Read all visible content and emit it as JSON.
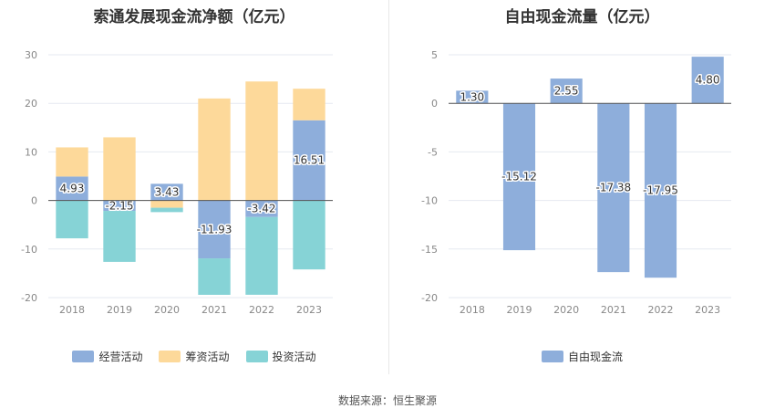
{
  "source_text": "数据来源：恒生聚源",
  "chart_data": [
    {
      "type": "bar",
      "stacked": true,
      "title": "索通发展现金流净额（亿元）",
      "categories": [
        "2018",
        "2019",
        "2020",
        "2021",
        "2022",
        "2023"
      ],
      "ylim": [
        -20,
        30
      ],
      "yticks": [
        -20,
        -10,
        0,
        10,
        20,
        30
      ],
      "grid": true,
      "legend_position": "bottom",
      "series": [
        {
          "name": "经营活动",
          "color": "#8eaedb",
          "values": [
            4.93,
            -2.15,
            3.43,
            -11.93,
            -3.42,
            16.51
          ],
          "labeled": true
        },
        {
          "name": "筹资活动",
          "color": "#fdd99a",
          "values": [
            6.0,
            13.0,
            -1.5,
            21.0,
            24.5,
            6.5
          ],
          "labeled": false
        },
        {
          "name": "投资活动",
          "color": "#86d3d6",
          "values": [
            -7.8,
            -10.5,
            -0.9,
            -7.5,
            -16.0,
            -14.2
          ],
          "labeled": false
        }
      ],
      "labels": [
        "4.93",
        "-2.15",
        "3.43",
        "-11.93",
        "-3.42",
        "16.51"
      ]
    },
    {
      "type": "bar",
      "title": "自由现金流量（亿元）",
      "categories": [
        "2018",
        "2019",
        "2020",
        "2021",
        "2022",
        "2023"
      ],
      "ylim": [
        -20,
        5
      ],
      "yticks": [
        -20,
        -15,
        -10,
        -5,
        0,
        5
      ],
      "grid": true,
      "legend_position": "bottom",
      "series": [
        {
          "name": "自由现金流",
          "color": "#8eaedb",
          "values": [
            1.3,
            -15.12,
            2.55,
            -17.38,
            -17.95,
            4.8
          ],
          "labeled": true
        }
      ],
      "labels": [
        "1.30",
        "-15.12",
        "2.55",
        "-17.38",
        "-17.95",
        "4.80"
      ]
    }
  ]
}
